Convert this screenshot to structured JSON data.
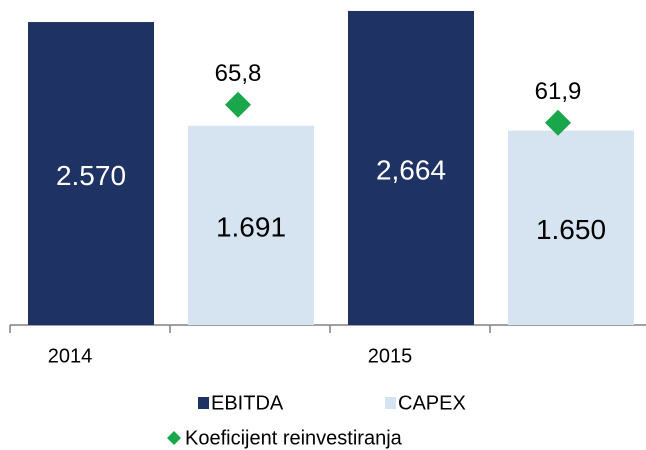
{
  "chart_data": {
    "type": "bar",
    "categories": [
      "2014",
      "2015"
    ],
    "series": [
      {
        "name": "EBITDA",
        "color": "#1f3264",
        "values": [
          2570,
          2664
        ],
        "value_labels": [
          "2.570",
          "2,664"
        ]
      },
      {
        "name": "CAPEX",
        "color": "#d6e3f0",
        "values": [
          1691,
          1650
        ],
        "value_labels": [
          "1.691",
          "1.650"
        ]
      },
      {
        "name": "Koeficijent reinvestiranja",
        "color": "#1aa64a",
        "type": "scatter",
        "axis": "y2",
        "values": [
          65.8,
          61.9
        ],
        "value_labels": [
          "65,8",
          "61,9"
        ]
      }
    ],
    "ylim": [
      0,
      2757
    ],
    "y2lim": [
      18.1,
      88.5
    ]
  }
}
